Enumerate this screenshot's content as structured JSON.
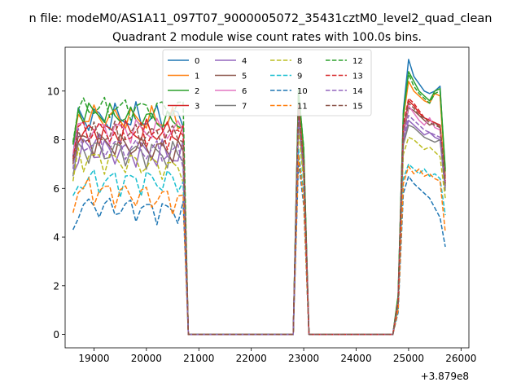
{
  "suptitle": "n file: modeM0/AS1A11_097T07_9000005072_35431cztM0_level2_quad_clean",
  "chart_data": {
    "type": "line",
    "title": "Quadrant 2 module wise count rates with 100.0s bins.",
    "xlabel": "",
    "ylabel": "",
    "x_offset_label": "+3.879e8",
    "xlim": [
      18450,
      26150
    ],
    "ylim": [
      -0.55,
      11.8
    ],
    "x_ticks": [
      19000,
      20000,
      21000,
      22000,
      23000,
      24000,
      25000,
      26000
    ],
    "x_tick_labels": [
      "19000",
      "20000",
      "21000",
      "22000",
      "23000",
      "24000",
      "25000",
      "26000"
    ],
    "y_ticks": [
      0,
      2,
      4,
      6,
      8,
      10
    ],
    "y_tick_labels": [
      "0",
      "2",
      "4",
      "6",
      "8",
      "10"
    ],
    "grid": false,
    "legend": {
      "placement": "top-center",
      "columns": 4
    },
    "segments": {
      "s1": {
        "x_start": 18600,
        "x_end": 20700
      },
      "gap1": {
        "x_start": 20800,
        "x_end": 22800
      },
      "peak": {
        "x": [
          22900,
          23000,
          23100
        ]
      },
      "gap2": {
        "x_start": 23200,
        "x_end": 24700
      },
      "s3": {
        "x": [
          24800,
          24900,
          25000,
          25100,
          25200,
          25300,
          25400,
          25500,
          25600,
          25700
        ]
      }
    },
    "series": [
      {
        "name": "0",
        "color": "#1f77b4",
        "dash": false,
        "base": 8.9,
        "amp": 0.45,
        "start": 7.3,
        "peak": [
          10.0,
          7.5
        ],
        "s3": [
          1.5,
          9.2,
          11.3,
          10.6,
          10.3,
          10.0,
          9.9,
          10.0,
          10.2,
          6.5
        ]
      },
      {
        "name": "1",
        "color": "#ff7f0e",
        "dash": false,
        "base": 9.0,
        "amp": 0.4,
        "start": 7.8,
        "peak": [
          9.8,
          7.3
        ],
        "s3": [
          1.4,
          8.9,
          10.4,
          10.0,
          9.8,
          9.6,
          9.5,
          9.9,
          9.8,
          6.4
        ]
      },
      {
        "name": "2",
        "color": "#2ca02c",
        "dash": false,
        "base": 9.2,
        "amp": 0.35,
        "start": 7.8,
        "peak": [
          10.1,
          7.6
        ],
        "s3": [
          1.6,
          9.0,
          10.8,
          10.4,
          10.0,
          9.8,
          9.6,
          10.0,
          10.1,
          6.8
        ]
      },
      {
        "name": "3",
        "color": "#d62728",
        "dash": false,
        "base": 8.3,
        "amp": 0.4,
        "start": 7.0,
        "peak": [
          9.3,
          7.0
        ],
        "s3": [
          1.3,
          8.4,
          9.6,
          9.4,
          9.1,
          8.9,
          8.8,
          8.7,
          8.6,
          6.2
        ]
      },
      {
        "name": "4",
        "color": "#9467bd",
        "dash": false,
        "base": 7.6,
        "amp": 0.45,
        "start": 6.6,
        "peak": [
          8.9,
          6.6
        ],
        "s3": [
          1.2,
          7.9,
          8.8,
          8.6,
          8.4,
          8.2,
          8.3,
          8.1,
          8.0,
          6.0
        ]
      },
      {
        "name": "5",
        "color": "#8c564b",
        "dash": false,
        "base": 8.0,
        "amp": 0.4,
        "start": 7.0,
        "peak": [
          9.0,
          6.9
        ],
        "s3": [
          1.3,
          8.2,
          9.3,
          9.2,
          9.0,
          8.8,
          8.6,
          8.7,
          8.5,
          6.1
        ]
      },
      {
        "name": "6",
        "color": "#e377c2",
        "dash": false,
        "base": 8.4,
        "amp": 0.4,
        "start": 7.4,
        "peak": [
          9.2,
          6.9
        ],
        "s3": [
          1.3,
          8.3,
          9.4,
          9.1,
          8.8,
          8.6,
          8.9,
          8.5,
          8.4,
          6.3
        ]
      },
      {
        "name": "7",
        "color": "#7f7f7f",
        "dash": false,
        "base": 7.6,
        "amp": 0.45,
        "start": 6.5,
        "peak": [
          8.8,
          6.5
        ],
        "s3": [
          1.2,
          7.8,
          8.6,
          8.5,
          8.3,
          8.1,
          8.0,
          7.9,
          8.0,
          5.9
        ]
      },
      {
        "name": "8",
        "color": "#bcbd22",
        "dash": true,
        "base": 7.3,
        "amp": 0.4,
        "start": 6.3,
        "peak": [
          8.4,
          6.3
        ],
        "s3": [
          1.1,
          7.4,
          8.1,
          8.0,
          7.8,
          7.6,
          7.7,
          7.5,
          7.3,
          5.6
        ]
      },
      {
        "name": "9",
        "color": "#17becf",
        "dash": true,
        "base": 6.3,
        "amp": 0.45,
        "start": 5.7,
        "peak": [
          7.6,
          5.8
        ],
        "s3": [
          1.0,
          6.4,
          7.0,
          6.8,
          6.6,
          6.8,
          6.5,
          6.6,
          6.4,
          4.9
        ]
      },
      {
        "name": "10",
        "color": "#1f77b4",
        "dash": true,
        "base": 5.3,
        "amp": 0.4,
        "start": 4.3,
        "peak": [
          7.1,
          5.3
        ],
        "s3": [
          0.9,
          5.8,
          6.5,
          6.2,
          6.0,
          5.8,
          5.6,
          5.2,
          4.8,
          3.6
        ]
      },
      {
        "name": "11",
        "color": "#ff7f0e",
        "dash": true,
        "base": 6.0,
        "amp": 0.45,
        "start": 5.0,
        "peak": [
          7.4,
          5.5
        ],
        "s3": [
          1.0,
          6.2,
          6.9,
          6.6,
          6.8,
          6.5,
          6.6,
          6.4,
          6.3,
          4.2
        ]
      },
      {
        "name": "12",
        "color": "#2ca02c",
        "dash": true,
        "base": 9.3,
        "amp": 0.35,
        "start": 7.9,
        "peak": [
          10.0,
          7.7
        ],
        "s3": [
          1.6,
          9.1,
          10.7,
          10.2,
          9.9,
          9.7,
          9.5,
          9.9,
          10.0,
          6.7
        ]
      },
      {
        "name": "13",
        "color": "#d62728",
        "dash": true,
        "base": 8.4,
        "amp": 0.4,
        "start": 7.2,
        "peak": [
          9.4,
          7.0
        ],
        "s3": [
          1.4,
          8.6,
          9.7,
          9.5,
          9.2,
          8.9,
          8.8,
          8.7,
          8.6,
          6.3
        ]
      },
      {
        "name": "14",
        "color": "#9467bd",
        "dash": true,
        "base": 7.9,
        "amp": 0.4,
        "start": 6.8,
        "peak": [
          9.0,
          6.8
        ],
        "s3": [
          1.3,
          8.1,
          9.0,
          8.8,
          8.6,
          8.4,
          8.3,
          8.2,
          8.1,
          6.1
        ]
      },
      {
        "name": "15",
        "color": "#8c564b",
        "dash": true,
        "base": 8.2,
        "amp": 0.4,
        "start": 7.1,
        "peak": [
          9.3,
          7.0
        ],
        "s3": [
          1.3,
          8.4,
          9.5,
          9.3,
          9.0,
          8.9,
          8.7,
          8.6,
          8.5,
          6.2
        ]
      }
    ]
  }
}
